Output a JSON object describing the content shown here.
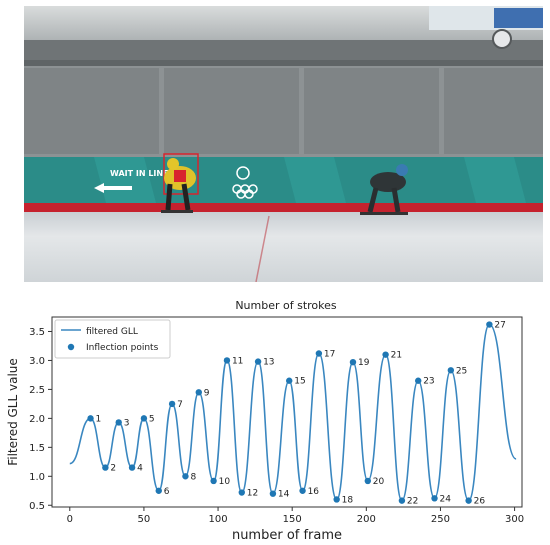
{
  "chart_data": {
    "type": "line",
    "title": "Number of strokes",
    "xlabel": "number of frame",
    "ylabel": "Filtered GLL value",
    "xlim": [
      -12,
      305
    ],
    "ylim": [
      0.47,
      3.75
    ],
    "xticks": [
      0,
      50,
      100,
      150,
      200,
      250,
      300
    ],
    "xtick_labels": [
      "0",
      "50",
      "100",
      "150",
      "200",
      "250",
      "300"
    ],
    "yticks": [
      0.5,
      1.0,
      1.5,
      2.0,
      2.5,
      3.0,
      3.5
    ],
    "ytick_labels": [
      "0.5",
      "1.0",
      "1.5",
      "2.0",
      "2.5",
      "3.0",
      "3.5"
    ],
    "legend": {
      "location": "upper-left",
      "entries": [
        {
          "label": "filtered GLL",
          "marker": "line"
        },
        {
          "label": "Inflection points",
          "marker": "dot"
        }
      ]
    },
    "series": [
      {
        "name": "filtered GLL",
        "kind": "line",
        "color": "#3a87c0",
        "start": {
          "x": 0,
          "y": 1.22
        },
        "end": {
          "x": 301,
          "y": 1.3
        }
      },
      {
        "name": "Inflection points",
        "kind": "scatter",
        "color": "#1f77b4",
        "points": [
          {
            "label": "1",
            "x": 14,
            "y": 2.0
          },
          {
            "label": "2",
            "x": 24,
            "y": 1.15
          },
          {
            "label": "3",
            "x": 33,
            "y": 1.93
          },
          {
            "label": "4",
            "x": 42,
            "y": 1.15
          },
          {
            "label": "5",
            "x": 50,
            "y": 2.0
          },
          {
            "label": "6",
            "x": 60,
            "y": 0.75
          },
          {
            "label": "7",
            "x": 69,
            "y": 2.25
          },
          {
            "label": "8",
            "x": 78,
            "y": 1.0
          },
          {
            "label": "9",
            "x": 87,
            "y": 2.45
          },
          {
            "label": "10",
            "x": 97,
            "y": 0.92
          },
          {
            "label": "11",
            "x": 106,
            "y": 3.0
          },
          {
            "label": "12",
            "x": 116,
            "y": 0.72
          },
          {
            "label": "13",
            "x": 127,
            "y": 2.98
          },
          {
            "label": "14",
            "x": 137,
            "y": 0.7
          },
          {
            "label": "15",
            "x": 148,
            "y": 2.65
          },
          {
            "label": "16",
            "x": 157,
            "y": 0.75
          },
          {
            "label": "17",
            "x": 168,
            "y": 3.12
          },
          {
            "label": "18",
            "x": 180,
            "y": 0.6
          },
          {
            "label": "19",
            "x": 191,
            "y": 2.97
          },
          {
            "label": "20",
            "x": 201,
            "y": 0.92
          },
          {
            "label": "21",
            "x": 213,
            "y": 3.1
          },
          {
            "label": "22",
            "x": 224,
            "y": 0.58
          },
          {
            "label": "23",
            "x": 235,
            "y": 2.65
          },
          {
            "label": "24",
            "x": 246,
            "y": 0.62
          },
          {
            "label": "25",
            "x": 257,
            "y": 2.83
          },
          {
            "label": "26",
            "x": 269,
            "y": 0.58
          },
          {
            "label": "27",
            "x": 283,
            "y": 3.62
          }
        ]
      }
    ]
  },
  "photo": {
    "sign_text": "WAIT IN LINE",
    "colors": {
      "wall": "#bfc3c4",
      "fence": "#2b8c88",
      "red_strip": "#c5222e",
      "ice": "#d8dcde",
      "skater_left": "#e0c22a",
      "skater_right": "#3a7bb2"
    }
  }
}
